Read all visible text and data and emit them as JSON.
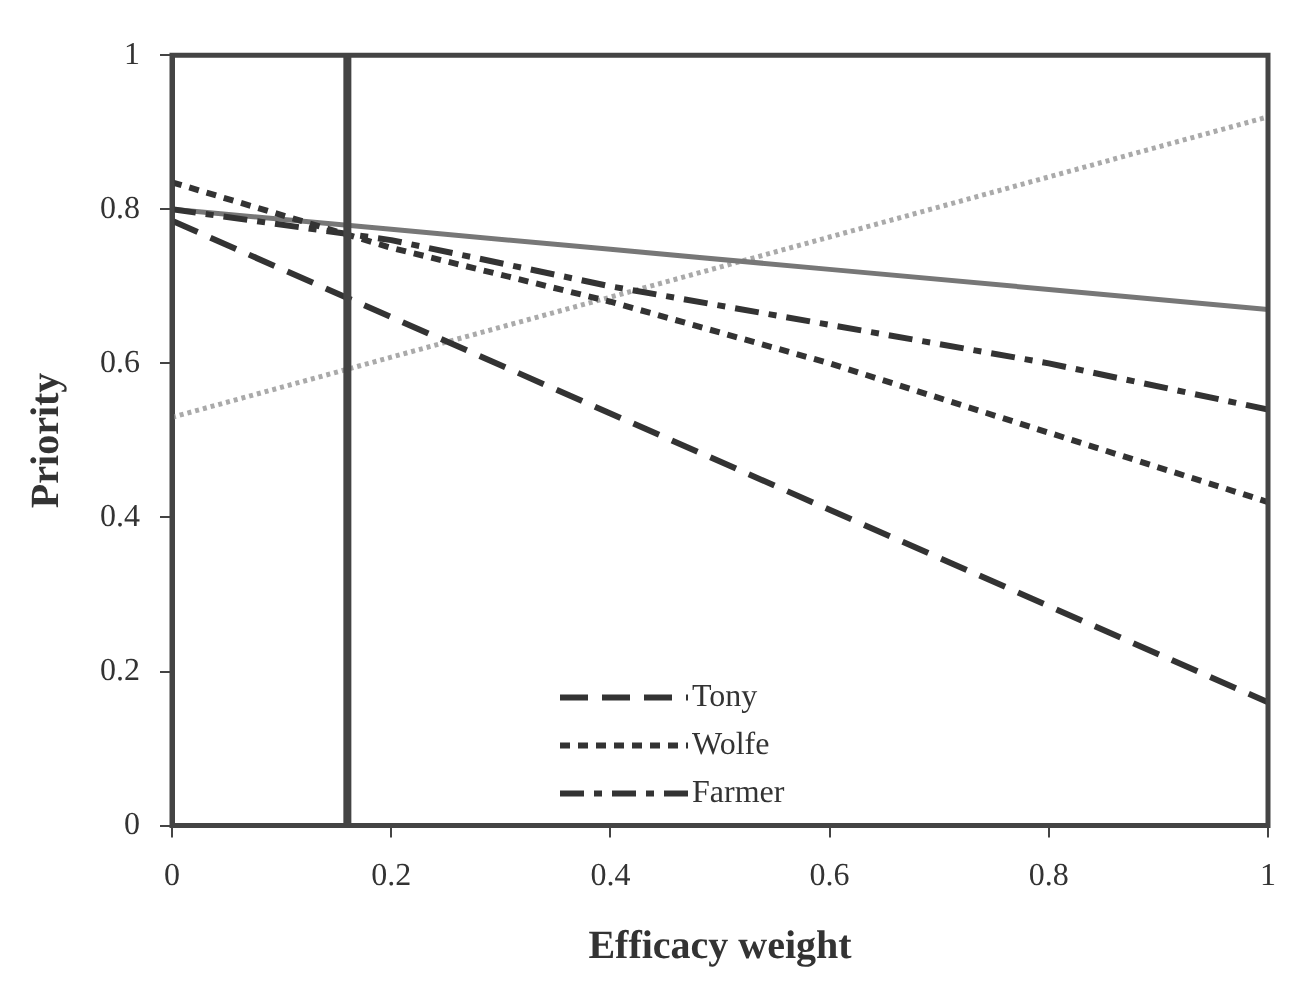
{
  "chart_data": {
    "type": "line",
    "xlabel": "Efficacy weight",
    "ylabel": "Priority",
    "x": [
      0,
      0.2,
      0.4,
      0.6,
      0.8,
      1
    ],
    "series": [
      {
        "name": "Tony",
        "color": "#333333",
        "line_style": "long-dashed",
        "values": [
          0.785,
          0.66,
          0.535,
          0.41,
          0.285,
          0.16
        ]
      },
      {
        "name": "Wolfe",
        "color": "#333333",
        "line_style": "dashed",
        "values": [
          0.835,
          0.75,
          0.68,
          0.6,
          0.51,
          0.42
        ]
      },
      {
        "name": "Farmer",
        "color": "#333333",
        "line_style": "dash-dot",
        "values": [
          0.8,
          0.76,
          0.7,
          0.65,
          0.6,
          0.54
        ]
      },
      {
        "color": "#777777",
        "line_style": "solid",
        "values": [
          0.8,
          0.774,
          0.748,
          0.722,
          0.696,
          0.67
        ]
      },
      {
        "color": "#aaaaaa",
        "line_style": "dotted",
        "values": [
          0.53,
          0.608,
          0.686,
          0.764,
          0.842,
          0.92
        ]
      }
    ],
    "xlim": [
      0,
      1
    ],
    "xticks": [
      0,
      0.2,
      0.4,
      0.6,
      0.8,
      1
    ],
    "ylim": [
      0,
      1
    ],
    "yticks": [
      0,
      0.2,
      0.4,
      0.6,
      0.8,
      1
    ],
    "ref_lines": [
      {
        "axis": "x",
        "value": 0.16,
        "color": "#444444"
      }
    ],
    "grid": false,
    "legend": "bottom",
    "marker": "none"
  }
}
